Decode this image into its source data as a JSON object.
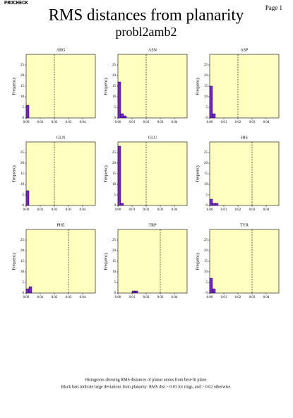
{
  "page": {
    "program": "PROCHECK",
    "page_label": "Page 1",
    "title": "RMS distances from planarity",
    "subtitle": "probl2amb2",
    "caption": [
      "Histograms showing RMS distances of planar atoms from best-fit plane.",
      "Black bars indicate large deviations from planarity: RMS dist > 0.03 for rings, and > 0.02 otherwise."
    ]
  },
  "chart_data": [
    {
      "type": "histogram",
      "title": "ARG",
      "ylabel": "Frequency",
      "bins": [
        0,
        0.002
      ],
      "counts": [
        6
      ],
      "threshold": 0.02,
      "color": "#7b1fd8",
      "background": "#ffffc0",
      "xlim": [
        0,
        0.049
      ],
      "xticks": [
        {
          "value": 0,
          "label": "0.00"
        },
        {
          "value": 0.01,
          "label": "0.01"
        },
        {
          "value": 0.02,
          "label": "0.02"
        },
        {
          "value": 0.03,
          "label": "0.03"
        },
        {
          "value": 0.04,
          "label": "0.04"
        }
      ],
      "ylim": [
        0,
        30
      ],
      "yticks": [
        0,
        5,
        10,
        15,
        20,
        25
      ]
    },
    {
      "type": "histogram",
      "title": "ASN",
      "ylabel": "Frequency",
      "bins": [
        0,
        0.002,
        0.004,
        0.006
      ],
      "counts": [
        17,
        2,
        1
      ],
      "threshold": 0.02,
      "color": "#7b1fd8",
      "background": "#ffffc0",
      "xlim": [
        0,
        0.049
      ],
      "xticks": [
        {
          "value": 0,
          "label": "0.00"
        },
        {
          "value": 0.01,
          "label": "0.01"
        },
        {
          "value": 0.02,
          "label": "0.02"
        },
        {
          "value": 0.03,
          "label": "0.03"
        },
        {
          "value": 0.04,
          "label": "0.04"
        }
      ],
      "ylim": [
        0,
        30
      ],
      "yticks": [
        0,
        5,
        10,
        15,
        20,
        25
      ]
    },
    {
      "type": "histogram",
      "title": "ASP",
      "ylabel": "Frequency",
      "bins": [
        0,
        0.002,
        0.004
      ],
      "counts": [
        15,
        2
      ],
      "threshold": 0.02,
      "color": "#7b1fd8",
      "background": "#ffffc0",
      "xlim": [
        0,
        0.049
      ],
      "xticks": [
        {
          "value": 0,
          "label": "0.00"
        },
        {
          "value": 0.01,
          "label": "0.01"
        },
        {
          "value": 0.02,
          "label": "0.02"
        },
        {
          "value": 0.03,
          "label": "0.03"
        },
        {
          "value": 0.04,
          "label": "0.04"
        }
      ],
      "ylim": [
        0,
        30
      ],
      "yticks": [
        0,
        5,
        10,
        15,
        20,
        25
      ]
    },
    {
      "type": "histogram",
      "title": "GLN",
      "ylabel": "Frequency",
      "bins": [
        0,
        0.002
      ],
      "counts": [
        7
      ],
      "threshold": 0.02,
      "color": "#7b1fd8",
      "background": "#ffffc0",
      "xlim": [
        0,
        0.049
      ],
      "xticks": [
        {
          "value": 0,
          "label": "0.00"
        },
        {
          "value": 0.01,
          "label": "0.01"
        },
        {
          "value": 0.02,
          "label": "0.02"
        },
        {
          "value": 0.03,
          "label": "0.03"
        },
        {
          "value": 0.04,
          "label": "0.04"
        }
      ],
      "ylim": [
        0,
        30
      ],
      "yticks": [
        0,
        5,
        10,
        15,
        20,
        25
      ]
    },
    {
      "type": "histogram",
      "title": "GLU",
      "ylabel": "Frequency",
      "bins": [
        0,
        0.002,
        0.004
      ],
      "counts": [
        28,
        1
      ],
      "threshold": 0.02,
      "color": "#7b1fd8",
      "background": "#ffffc0",
      "xlim": [
        0,
        0.049
      ],
      "xticks": [
        {
          "value": 0,
          "label": "0.00"
        },
        {
          "value": 0.01,
          "label": "0.01"
        },
        {
          "value": 0.02,
          "label": "0.02"
        },
        {
          "value": 0.03,
          "label": "0.03"
        },
        {
          "value": 0.04,
          "label": "0.04"
        }
      ],
      "ylim": [
        0,
        30
      ],
      "yticks": [
        0,
        5,
        10,
        15,
        20,
        25
      ]
    },
    {
      "type": "histogram",
      "title": "HIS",
      "ylabel": "Frequency",
      "bins": [
        0,
        0.002,
        0.004,
        0.006
      ],
      "counts": [
        3,
        1,
        1
      ],
      "threshold": 0.03,
      "color": "#7b1fd8",
      "background": "#ffffc0",
      "xlim": [
        0,
        0.049
      ],
      "xticks": [
        {
          "value": 0,
          "label": "0.00"
        },
        {
          "value": 0.01,
          "label": "0.01"
        },
        {
          "value": 0.02,
          "label": "0.02"
        },
        {
          "value": 0.03,
          "label": "0.03"
        },
        {
          "value": 0.04,
          "label": "0.04"
        }
      ],
      "ylim": [
        0,
        30
      ],
      "yticks": [
        0,
        5,
        10,
        15,
        20,
        25
      ]
    },
    {
      "type": "histogram",
      "title": "PHE",
      "ylabel": "Frequency",
      "bins": [
        0,
        0.002,
        0.004
      ],
      "counts": [
        2,
        3
      ],
      "threshold": 0.03,
      "color": "#7b1fd8",
      "background": "#ffffc0",
      "xlim": [
        0,
        0.049
      ],
      "xticks": [
        {
          "value": 0,
          "label": "0.00"
        },
        {
          "value": 0.01,
          "label": "0.01"
        },
        {
          "value": 0.02,
          "label": "0.02"
        },
        {
          "value": 0.03,
          "label": "0.03"
        },
        {
          "value": 0.04,
          "label": "0.04"
        }
      ],
      "ylim": [
        0,
        30
      ],
      "yticks": [
        0,
        5,
        10,
        15,
        20,
        25
      ]
    },
    {
      "type": "histogram",
      "title": "TRP",
      "ylabel": "Frequency",
      "bins": [
        0.01,
        0.012,
        0.014
      ],
      "counts": [
        1,
        1
      ],
      "threshold": 0.03,
      "color": "#7b1fd8",
      "background": "#ffffc0",
      "xlim": [
        0,
        0.049
      ],
      "xticks": [
        {
          "value": 0,
          "label": "0.00"
        },
        {
          "value": 0.01,
          "label": "0.01"
        },
        {
          "value": 0.02,
          "label": "0.02"
        },
        {
          "value": 0.03,
          "label": "0.03"
        },
        {
          "value": 0.04,
          "label": "0.04"
        }
      ],
      "ylim": [
        0,
        30
      ],
      "yticks": [
        0,
        5,
        10,
        15,
        20,
        25
      ]
    },
    {
      "type": "histogram",
      "title": "TYR",
      "ylabel": "Frequency",
      "bins": [
        0,
        0.002,
        0.004
      ],
      "counts": [
        7,
        2
      ],
      "threshold": 0.03,
      "color": "#7b1fd8",
      "background": "#ffffc0",
      "xlim": [
        0,
        0.049
      ],
      "xticks": [
        {
          "value": 0,
          "label": "0.00"
        },
        {
          "value": 0.01,
          "label": "0.01"
        },
        {
          "value": 0.02,
          "label": "0.02"
        },
        {
          "value": 0.03,
          "label": "0.03"
        },
        {
          "value": 0.04,
          "label": "0.04"
        }
      ],
      "ylim": [
        0,
        30
      ],
      "yticks": [
        0,
        5,
        10,
        15,
        20,
        25
      ]
    }
  ]
}
